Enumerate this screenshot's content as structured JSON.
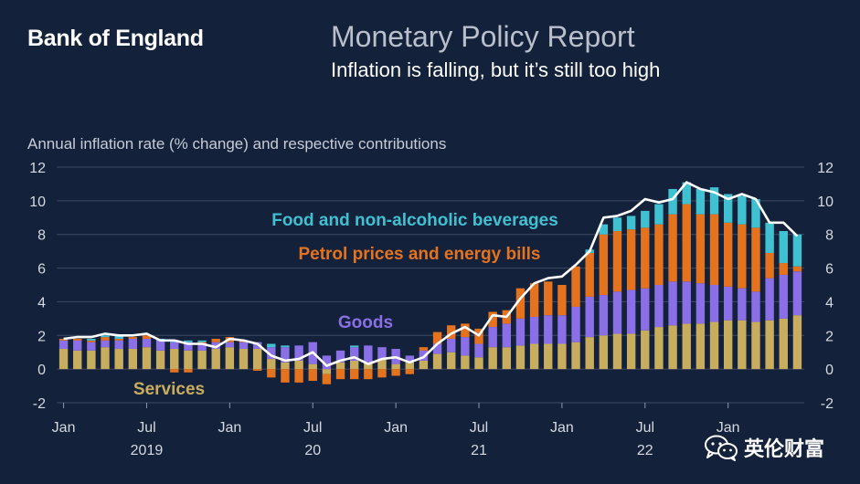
{
  "header": {
    "brand": "Bank of England",
    "report_title": "Monetary Policy Report",
    "subtitle": "Inflation is falling, but it’s still too high"
  },
  "watermark": {
    "text": "英伦财富",
    "icon": "wechat-icon"
  },
  "colors": {
    "background": "#14213b",
    "services": "#c9ad5e",
    "goods": "#8a6fe6",
    "energy": "#e5731e",
    "food": "#3fc1d2",
    "headline_line": "#ffffff",
    "grid": "#3e4a64",
    "axis_text": "#d5d9e0",
    "label_food": "#3fc1d2",
    "label_energy": "#e5731e",
    "label_goods": "#8a6fe6",
    "label_services": "#c9ad5e"
  },
  "chart_data": {
    "type": "bar",
    "stacked": true,
    "title": "Annual inflation rate (% change) and respective contributions",
    "ylim": [
      -2,
      12
    ],
    "y_ticks": [
      -2,
      0,
      2,
      4,
      6,
      8,
      10,
      12
    ],
    "y_tick_labels": [
      "-2",
      "0",
      "2",
      "4",
      "6",
      "8",
      "10",
      "12"
    ],
    "x_tick_labels": [
      "Jan",
      "Jul",
      "Jan",
      "Jul",
      "Jan",
      "Jul",
      "Jan",
      "Jul",
      "Jan"
    ],
    "x_tick_indices": [
      0,
      6,
      12,
      18,
      24,
      30,
      36,
      42,
      48
    ],
    "year_labels": [
      "2019",
      "20",
      "21",
      "22"
    ],
    "year_label_indices": [
      6,
      18,
      30,
      42
    ],
    "months": [
      "Jan 2019",
      "Feb 2019",
      "Mar 2019",
      "Apr 2019",
      "May 2019",
      "Jun 2019",
      "Jul 2019",
      "Aug 2019",
      "Sep 2019",
      "Oct 2019",
      "Nov 2019",
      "Dec 2019",
      "Jan 2020",
      "Feb 2020",
      "Mar 2020",
      "Apr 2020",
      "May 2020",
      "Jun 2020",
      "Jul 2020",
      "Aug 2020",
      "Sep 2020",
      "Oct 2020",
      "Nov 2020",
      "Dec 2020",
      "Jan 2021",
      "Feb 2021",
      "Mar 2021",
      "Apr 2021",
      "May 2021",
      "Jun 2021",
      "Jul 2021",
      "Aug 2021",
      "Sep 2021",
      "Oct 2021",
      "Nov 2021",
      "Dec 2021",
      "Jan 2022",
      "Feb 2022",
      "Mar 2022",
      "Apr 2022",
      "May 2022",
      "Jun 2022",
      "Jul 2022",
      "Aug 2022",
      "Sep 2022",
      "Oct 2022",
      "Nov 2022",
      "Dec 2022",
      "Jan 2023",
      "Feb 2023",
      "Mar 2023",
      "Apr 2023",
      "May 2023",
      "Jun 2023"
    ],
    "series": [
      {
        "name": "Services",
        "label": "Services",
        "values": [
          1.2,
          1.1,
          1.1,
          1.3,
          1.2,
          1.2,
          1.3,
          1.1,
          1.2,
          1.1,
          1.1,
          1.2,
          1.3,
          1.2,
          1.2,
          0.6,
          0.4,
          0.5,
          0.3,
          -0.3,
          0.4,
          0.5,
          0.4,
          0.6,
          0.3,
          0.4,
          0.5,
          0.9,
          1.0,
          0.8,
          0.7,
          1.3,
          1.3,
          1.4,
          1.5,
          1.5,
          1.5,
          1.6,
          1.9,
          2.0,
          2.1,
          2.1,
          2.3,
          2.5,
          2.6,
          2.7,
          2.7,
          2.8,
          2.9,
          2.9,
          2.8,
          2.9,
          3.0,
          3.2
        ]
      },
      {
        "name": "Goods",
        "label": "Goods",
        "values": [
          0.5,
          0.6,
          0.5,
          0.4,
          0.5,
          0.6,
          0.5,
          0.6,
          0.4,
          0.5,
          0.4,
          0.4,
          0.3,
          0.4,
          0.4,
          0.7,
          0.9,
          0.9,
          1.3,
          0.8,
          0.7,
          0.8,
          1.0,
          0.7,
          0.9,
          0.4,
          0.6,
          0.6,
          0.8,
          1.1,
          0.8,
          1.2,
          1.4,
          1.6,
          1.6,
          1.7,
          1.7,
          2.1,
          2.4,
          2.4,
          2.5,
          2.6,
          2.5,
          2.5,
          2.6,
          2.5,
          2.4,
          2.2,
          2.0,
          1.9,
          1.8,
          2.5,
          2.6,
          2.6
        ]
      },
      {
        "name": "Petrol prices and energy bills",
        "label": "Petrol prices and energy bills",
        "values": [
          0.1,
          0.1,
          0.1,
          0.2,
          0.1,
          0.1,
          0.2,
          0.0,
          -0.2,
          -0.2,
          0.1,
          0.2,
          0.3,
          0.1,
          -0.1,
          -0.5,
          -0.8,
          -0.8,
          -0.7,
          -0.6,
          -0.6,
          -0.6,
          -0.6,
          -0.5,
          -0.4,
          -0.3,
          0.2,
          0.7,
          0.8,
          0.8,
          0.9,
          0.9,
          0.8,
          1.8,
          2.0,
          2.0,
          1.8,
          2.4,
          2.6,
          3.6,
          3.6,
          3.6,
          3.6,
          3.6,
          4.0,
          4.6,
          4.1,
          4.2,
          3.8,
          3.8,
          3.8,
          1.5,
          0.7,
          0.3
        ]
      },
      {
        "name": "Food and non-alcoholic beverages",
        "label": "Food and non-alcoholic beverages",
        "values": [
          0.0,
          0.0,
          0.1,
          0.1,
          0.2,
          0.0,
          0.0,
          0.1,
          0.1,
          0.1,
          0.1,
          0.0,
          0.0,
          0.0,
          0.0,
          0.2,
          0.1,
          0.0,
          0.0,
          0.0,
          0.0,
          0.1,
          0.0,
          0.0,
          0.0,
          0.0,
          0.0,
          0.0,
          0.0,
          0.0,
          0.0,
          0.0,
          0.0,
          0.0,
          0.0,
          0.0,
          0.0,
          0.0,
          0.2,
          0.6,
          0.8,
          0.8,
          1.0,
          1.2,
          1.5,
          1.3,
          1.5,
          1.6,
          1.7,
          1.7,
          1.7,
          1.8,
          1.9,
          1.9
        ]
      }
    ],
    "headline": {
      "name": "CPI inflation",
      "values": [
        1.8,
        1.9,
        1.9,
        2.1,
        2.0,
        2.0,
        2.1,
        1.7,
        1.7,
        1.5,
        1.5,
        1.3,
        1.8,
        1.7,
        1.5,
        0.8,
        0.5,
        0.6,
        1.0,
        0.2,
        0.5,
        0.7,
        0.3,
        0.6,
        0.7,
        0.4,
        0.7,
        1.5,
        2.1,
        2.5,
        2.0,
        3.2,
        3.1,
        4.2,
        5.1,
        5.4,
        5.5,
        6.2,
        7.0,
        9.0,
        9.1,
        9.4,
        10.1,
        9.9,
        10.1,
        11.1,
        10.7,
        10.5,
        10.1,
        10.4,
        10.1,
        8.7,
        8.7,
        7.9
      ]
    },
    "annotations": [
      {
        "text": "Food and non-alcoholic beverages",
        "series": "Food and non-alcoholic beverages"
      },
      {
        "text": "Petrol prices and energy bills",
        "series": "Petrol prices and energy bills"
      },
      {
        "text": "Goods",
        "series": "Goods"
      },
      {
        "text": "Services",
        "series": "Services"
      }
    ]
  }
}
